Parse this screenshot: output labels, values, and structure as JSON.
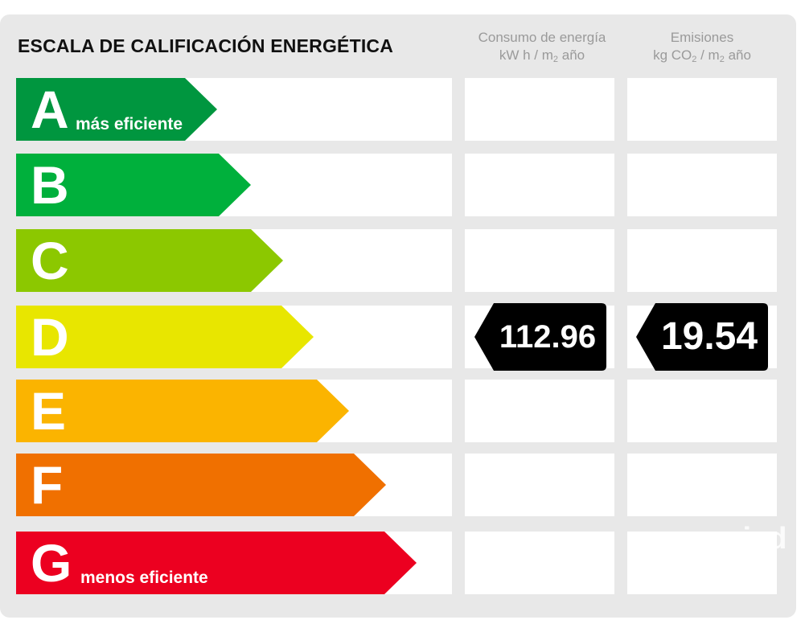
{
  "title": "ESCALA DE CALIFICACIÓN ENERGÉTICA",
  "columns": {
    "consumption": {
      "line1": "Consumo de energía",
      "line2_pre": "kW h / m",
      "line2_sub": "2",
      "line2_post": " año"
    },
    "emissions": {
      "line1": "Emisiones",
      "line2_pre": "kg CO",
      "line2_sub": "2",
      "line2_mid": " / m",
      "line2_sub2": "2",
      "line2_post": " año"
    }
  },
  "classes": [
    {
      "letter": "A",
      "note": "más eficiente",
      "color": "#00963f"
    },
    {
      "letter": "B",
      "note": "",
      "color": "#00b03c"
    },
    {
      "letter": "C",
      "note": "",
      "color": "#8cc800"
    },
    {
      "letter": "D",
      "note": "",
      "color": "#e8e600"
    },
    {
      "letter": "E",
      "note": "",
      "color": "#fbb400"
    },
    {
      "letter": "F",
      "note": "",
      "color": "#f07000"
    },
    {
      "letter": "G",
      "note": "menos eficiente",
      "color": "#ec0020"
    }
  ],
  "rating": {
    "class": "D",
    "consumption": "112.96",
    "emissions": "19.54"
  },
  "watermark": "iad"
}
